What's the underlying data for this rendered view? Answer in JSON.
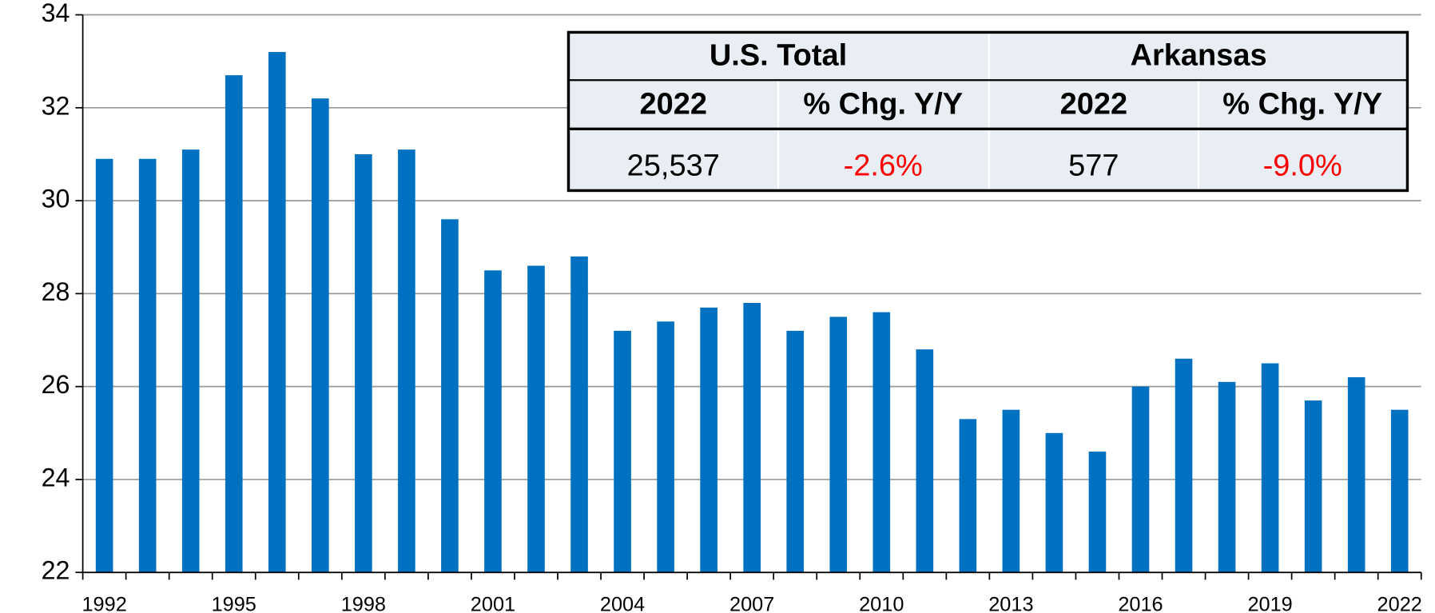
{
  "chart_data": {
    "type": "bar",
    "categories": [
      "1992",
      null,
      null,
      "1995",
      null,
      null,
      "1998",
      null,
      null,
      "2001",
      null,
      null,
      "2004",
      null,
      null,
      "2007",
      null,
      null,
      "2010",
      null,
      null,
      "2013",
      null,
      null,
      "2016",
      null,
      null,
      "2019",
      null,
      null,
      "2022"
    ],
    "values": [
      30.9,
      30.9,
      31.1,
      32.7,
      33.2,
      32.2,
      31.0,
      31.1,
      29.6,
      28.5,
      28.6,
      28.8,
      27.2,
      27.4,
      27.7,
      27.8,
      27.2,
      27.5,
      27.6,
      26.8,
      25.3,
      25.5,
      25.0,
      24.6,
      26.0,
      26.6,
      26.1,
      26.5,
      25.7,
      26.2,
      25.5
    ],
    "color": "#0070c0",
    "ylim": [
      22,
      34
    ],
    "yticks": [
      22,
      24,
      26,
      28,
      30,
      32,
      34
    ],
    "grid": true
  },
  "table": {
    "groups": [
      "U.S. Total",
      "Arkansas"
    ],
    "columns": [
      "2022",
      "% Chg. Y/Y",
      "2022",
      "% Chg. Y/Y"
    ],
    "row": [
      "25,537",
      "-2.6%",
      "577",
      "-9.0%"
    ]
  }
}
